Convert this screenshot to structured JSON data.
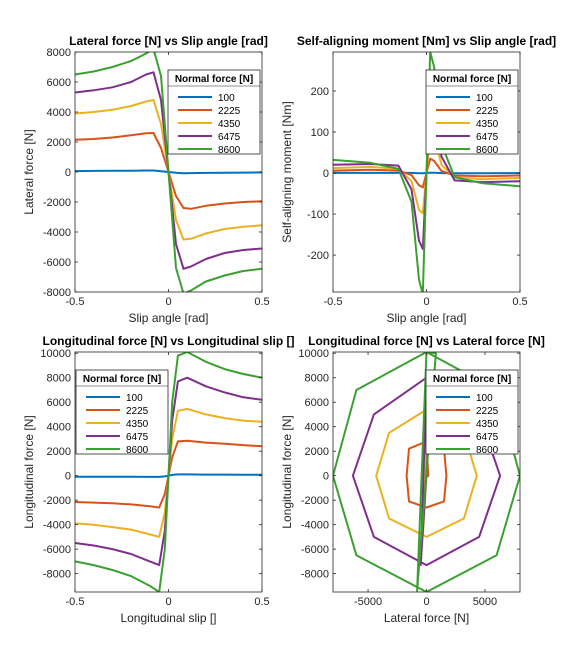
{
  "legend_title": "Normal force [N]",
  "legend_entries": [
    "100",
    "2225",
    "4350",
    "6475",
    "8600"
  ],
  "series_colors": [
    "#0072BD",
    "#D95319",
    "#EDB120",
    "#7E2F8E",
    "#3BA031"
  ],
  "chart_data": [
    {
      "type": "line",
      "title": "Lateral force [N] vs Slip angle [rad]",
      "xlabel": "Slip angle [rad]",
      "ylabel": "Lateral force [N]",
      "xlim": [
        -0.5,
        0.5
      ],
      "ylim": [
        -8000,
        8000
      ],
      "xticks": [
        -0.5,
        0,
        0.5
      ],
      "xtick_labels": [
        "-0.5",
        "0",
        "0.5"
      ],
      "yticks": [
        -8000,
        -6000,
        -4000,
        -2000,
        0,
        2000,
        4000,
        6000,
        8000
      ],
      "ytick_labels": [
        "-8000",
        "-6000",
        "-4000",
        "-2000",
        "0",
        "2000",
        "4000",
        "6000",
        "8000"
      ],
      "legend": "top-right",
      "series": [
        {
          "name": "100",
          "x": [
            -0.5,
            -0.4,
            -0.3,
            -0.2,
            -0.12,
            -0.08,
            -0.04,
            0,
            0.04,
            0.08,
            0.12,
            0.2,
            0.3,
            0.4,
            0.5
          ],
          "y": [
            60,
            70,
            80,
            90,
            100,
            100,
            50,
            0,
            -50,
            -80,
            -70,
            -60,
            -50,
            -40,
            -30
          ]
        },
        {
          "name": "2225",
          "x": [
            -0.5,
            -0.4,
            -0.3,
            -0.2,
            -0.12,
            -0.08,
            -0.04,
            0,
            0.04,
            0.08,
            0.12,
            0.2,
            0.3,
            0.4,
            0.5
          ],
          "y": [
            2150,
            2200,
            2300,
            2450,
            2580,
            2600,
            1600,
            0,
            -1600,
            -2400,
            -2450,
            -2250,
            -2100,
            -2000,
            -1950
          ]
        },
        {
          "name": "4350",
          "x": [
            -0.5,
            -0.4,
            -0.3,
            -0.2,
            -0.12,
            -0.08,
            -0.04,
            0,
            0.04,
            0.08,
            0.12,
            0.2,
            0.3,
            0.4,
            0.5
          ],
          "y": [
            3900,
            4000,
            4150,
            4400,
            4700,
            4800,
            3200,
            0,
            -3200,
            -4500,
            -4450,
            -4100,
            -3800,
            -3650,
            -3550
          ]
        },
        {
          "name": "6475",
          "x": [
            -0.5,
            -0.4,
            -0.3,
            -0.2,
            -0.12,
            -0.08,
            -0.04,
            0,
            0.04,
            0.08,
            0.12,
            0.2,
            0.3,
            0.4,
            0.5
          ],
          "y": [
            5300,
            5450,
            5650,
            6000,
            6500,
            6650,
            4800,
            0,
            -4800,
            -6450,
            -6300,
            -5800,
            -5400,
            -5200,
            -5100
          ]
        },
        {
          "name": "8600",
          "x": [
            -0.5,
            -0.4,
            -0.3,
            -0.2,
            -0.12,
            -0.08,
            -0.04,
            0,
            0.04,
            0.08,
            0.12,
            0.2,
            0.3,
            0.4,
            0.5
          ],
          "y": [
            6500,
            6700,
            7000,
            7400,
            7900,
            8200,
            6400,
            0,
            -6400,
            -8100,
            -7900,
            -7300,
            -6900,
            -6600,
            -6450
          ]
        }
      ]
    },
    {
      "type": "line",
      "title": "Self-aligning moment [Nm] vs Slip angle [rad]",
      "xlabel": "Slip angle [rad]",
      "ylabel": "Self-aligning moment [Nm]",
      "xlim": [
        -0.5,
        0.5
      ],
      "ylim": [
        -290,
        295
      ],
      "xticks": [
        -0.5,
        0,
        0.5
      ],
      "xtick_labels": [
        "-0.5",
        "0",
        "0.5"
      ],
      "yticks": [
        -200,
        -100,
        0,
        100,
        200
      ],
      "ytick_labels": [
        "-200",
        "-100",
        "0",
        "100",
        "200"
      ],
      "legend": "top-right",
      "series": [
        {
          "name": "100",
          "x": [
            -0.5,
            -0.3,
            -0.15,
            -0.08,
            -0.04,
            -0.02,
            0,
            0.02,
            0.04,
            0.08,
            0.15,
            0.3,
            0.5
          ],
          "y": [
            0.3,
            0.4,
            0.4,
            0.2,
            -0.5,
            -0.6,
            0,
            0.6,
            0.5,
            -0.2,
            -0.4,
            -0.4,
            -0.3
          ]
        },
        {
          "name": "2225",
          "x": [
            -0.5,
            -0.3,
            -0.15,
            -0.08,
            -0.04,
            -0.02,
            0,
            0.02,
            0.04,
            0.08,
            0.15,
            0.3,
            0.5
          ],
          "y": [
            6,
            8,
            6,
            -5,
            -30,
            -35,
            0,
            35,
            30,
            5,
            -6,
            -8,
            -6
          ]
        },
        {
          "name": "4350",
          "x": [
            -0.5,
            -0.3,
            -0.15,
            -0.08,
            -0.04,
            -0.02,
            0,
            0.02,
            0.04,
            0.08,
            0.15,
            0.3,
            0.5
          ],
          "y": [
            12,
            15,
            10,
            -20,
            -90,
            -98,
            0,
            98,
            90,
            20,
            -10,
            -15,
            -12
          ]
        },
        {
          "name": "6475",
          "x": [
            -0.5,
            -0.3,
            -0.15,
            -0.08,
            -0.04,
            -0.02,
            0,
            0.02,
            0.04,
            0.08,
            0.15,
            0.3,
            0.5
          ],
          "y": [
            20,
            22,
            18,
            -40,
            -165,
            -185,
            0,
            185,
            165,
            40,
            -18,
            -22,
            -20
          ]
        },
        {
          "name": "8600",
          "x": [
            -0.5,
            -0.3,
            -0.15,
            -0.08,
            -0.04,
            -0.02,
            0,
            0.02,
            0.04,
            0.08,
            0.15,
            0.3,
            0.5
          ],
          "y": [
            32,
            25,
            10,
            -70,
            -260,
            -295,
            0,
            295,
            260,
            70,
            -10,
            -25,
            -32
          ]
        }
      ]
    },
    {
      "type": "line",
      "title": "Longitudinal force [N] vs Longitudinal slip []",
      "xlabel": "Longitudinal slip []",
      "ylabel": "Longitudinal force [N]",
      "xlim": [
        -0.5,
        0.5
      ],
      "ylim": [
        -9500,
        10100
      ],
      "xticks": [
        -0.5,
        0,
        0.5
      ],
      "xtick_labels": [
        "-0.5",
        "0",
        "0.5"
      ],
      "yticks": [
        -8000,
        -6000,
        -4000,
        -2000,
        0,
        2000,
        4000,
        6000,
        8000,
        10000
      ],
      "ytick_labels": [
        "-8000",
        "-6000",
        "-4000",
        "-2000",
        "0",
        "2000",
        "4000",
        "6000",
        "8000",
        "10000"
      ],
      "legend": "top-left",
      "series": [
        {
          "name": "100",
          "x": [
            -0.5,
            -0.4,
            -0.3,
            -0.2,
            -0.1,
            -0.05,
            -0.02,
            0,
            0.02,
            0.05,
            0.1,
            0.2,
            0.3,
            0.4,
            0.5
          ],
          "y": [
            -80,
            -80,
            -85,
            -90,
            -100,
            -100,
            -60,
            0,
            60,
            100,
            100,
            90,
            85,
            80,
            80
          ]
        },
        {
          "name": "2225",
          "x": [
            -0.5,
            -0.4,
            -0.3,
            -0.2,
            -0.1,
            -0.05,
            -0.02,
            0,
            0.02,
            0.05,
            0.1,
            0.2,
            0.3,
            0.4,
            0.5
          ],
          "y": [
            -2150,
            -2200,
            -2250,
            -2350,
            -2500,
            -2600,
            -1500,
            0,
            1500,
            2800,
            2850,
            2700,
            2600,
            2500,
            2400
          ]
        },
        {
          "name": "4350",
          "x": [
            -0.5,
            -0.4,
            -0.3,
            -0.2,
            -0.1,
            -0.05,
            -0.02,
            0,
            0.02,
            0.05,
            0.1,
            0.2,
            0.3,
            0.4,
            0.5
          ],
          "y": [
            -3900,
            -4000,
            -4200,
            -4400,
            -4800,
            -5000,
            -3000,
            0,
            3000,
            5300,
            5450,
            5000,
            4700,
            4500,
            4400
          ]
        },
        {
          "name": "6475",
          "x": [
            -0.5,
            -0.4,
            -0.3,
            -0.2,
            -0.1,
            -0.05,
            -0.02,
            0,
            0.02,
            0.05,
            0.1,
            0.2,
            0.3,
            0.4,
            0.5
          ],
          "y": [
            -5500,
            -5700,
            -6000,
            -6400,
            -7000,
            -7300,
            -4500,
            0,
            4500,
            7700,
            8000,
            7300,
            6800,
            6400,
            6200
          ]
        },
        {
          "name": "8600",
          "x": [
            -0.5,
            -0.4,
            -0.3,
            -0.2,
            -0.1,
            -0.05,
            -0.02,
            0,
            0.02,
            0.05,
            0.1,
            0.2,
            0.3,
            0.4,
            0.5
          ],
          "y": [
            -7000,
            -7300,
            -7700,
            -8200,
            -9000,
            -9500,
            -6000,
            0,
            6000,
            9800,
            10100,
            9300,
            8700,
            8300,
            8000
          ]
        }
      ]
    },
    {
      "type": "line",
      "title": "Longitudinal force [N] vs Lateral force [N]",
      "xlabel": "Lateral force [N]",
      "ylabel": "Longitudinal force [N]",
      "xlim": [
        -8000,
        8000
      ],
      "ylim": [
        -9500,
        10100
      ],
      "xticks": [
        -5000,
        0,
        5000
      ],
      "xtick_labels": [
        "-5000",
        "0",
        "5000"
      ],
      "yticks": [
        -8000,
        -6000,
        -4000,
        -2000,
        0,
        2000,
        4000,
        6000,
        8000,
        10000
      ],
      "ytick_labels": [
        "-8000",
        "-6000",
        "-4000",
        "-2000",
        "0",
        "2000",
        "4000",
        "6000",
        "8000",
        "10000"
      ],
      "legend": "top-right",
      "series": [
        {
          "name": "100",
          "x": [
            0,
            80,
            100,
            80,
            0,
            -80,
            -100,
            -80,
            0
          ],
          "y": [
            100,
            70,
            0,
            -70,
            -100,
            -70,
            0,
            70,
            100
          ]
        },
        {
          "name": "2225",
          "x": [
            0,
            -1500,
            -1700,
            -1500,
            0,
            0,
            1500,
            1700,
            1500,
            0,
            -150,
            150,
            0
          ],
          "y": [
            2800,
            2200,
            0,
            -2100,
            -2600,
            -2600,
            -2100,
            0,
            2200,
            2800,
            0,
            0,
            2800
          ]
        },
        {
          "name": "4350",
          "x": [
            0,
            -3200,
            -4300,
            -3200,
            0,
            3200,
            4300,
            3200,
            0,
            -300,
            300,
            0
          ],
          "y": [
            5400,
            3500,
            0,
            -3500,
            -5000,
            -3500,
            0,
            3500,
            5400,
            -4800,
            5200,
            5400
          ]
        },
        {
          "name": "6475",
          "x": [
            0,
            -4500,
            -6300,
            -4500,
            0,
            4500,
            6300,
            4500,
            0,
            -500,
            500,
            0
          ],
          "y": [
            8000,
            5000,
            0,
            -5000,
            -7300,
            -5000,
            0,
            5000,
            8000,
            -7300,
            7800,
            8000
          ]
        },
        {
          "name": "8600",
          "x": [
            0,
            -6000,
            -8000,
            -6000,
            0,
            6000,
            8000,
            6000,
            0,
            -800,
            800,
            0
          ],
          "y": [
            10100,
            7000,
            0,
            -6500,
            -9500,
            -6500,
            0,
            7000,
            10100,
            -9400,
            10000,
            10100
          ]
        }
      ]
    }
  ]
}
